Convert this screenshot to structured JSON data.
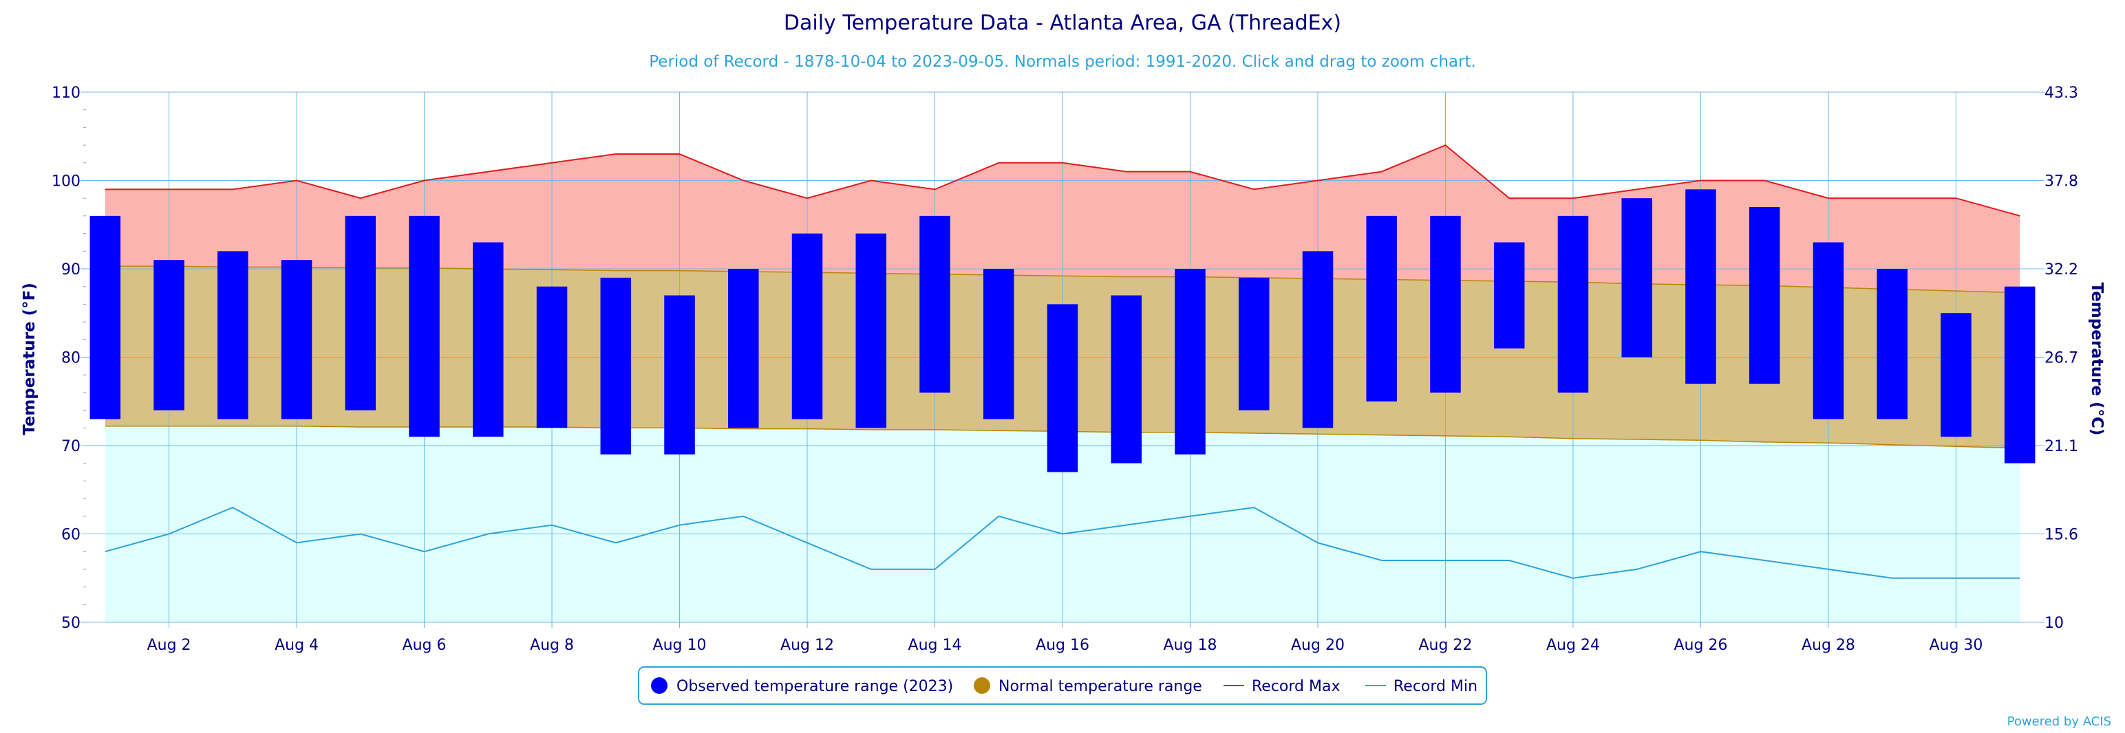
{
  "chart_data": {
    "type": "bar",
    "title": "Daily Temperature Data - Atlanta Area, GA (ThreadEx)",
    "subtitle": "Period of Record - 1878-10-04 to 2023-09-05. Normals period: 1991-2020. Click and drag to zoom chart.",
    "ylabel": "Temperature (°F)",
    "ylabel_right": "Temperature (°C)",
    "ylim": [
      50,
      110
    ],
    "yticks": [
      "50",
      "60",
      "70",
      "80",
      "90",
      "100",
      "110"
    ],
    "yticks_right": [
      "10",
      "15.6",
      "21.1",
      "26.7",
      "32.2",
      "37.8",
      "43.3"
    ],
    "x": [
      "Aug 1",
      "Aug 2",
      "Aug 3",
      "Aug 4",
      "Aug 5",
      "Aug 6",
      "Aug 7",
      "Aug 8",
      "Aug 9",
      "Aug 10",
      "Aug 11",
      "Aug 12",
      "Aug 13",
      "Aug 14",
      "Aug 15",
      "Aug 16",
      "Aug 17",
      "Aug 18",
      "Aug 19",
      "Aug 20",
      "Aug 21",
      "Aug 22",
      "Aug 23",
      "Aug 24",
      "Aug 25",
      "Aug 26",
      "Aug 27",
      "Aug 28",
      "Aug 29",
      "Aug 30",
      "Aug 31"
    ],
    "xtick_labels": [
      "Aug 2",
      "Aug 4",
      "Aug 6",
      "Aug 8",
      "Aug 10",
      "Aug 12",
      "Aug 14",
      "Aug 16",
      "Aug 18",
      "Aug 20",
      "Aug 22",
      "Aug 24",
      "Aug 26",
      "Aug 28",
      "Aug 30"
    ],
    "series": [
      {
        "name": "Observed temperature range (2023)",
        "color": "#0000ff",
        "high": [
          96,
          91,
          92,
          91,
          96,
          96,
          93,
          88,
          89,
          87,
          90,
          94,
          94,
          96,
          90,
          86,
          87,
          90,
          89,
          92,
          96,
          96,
          93,
          96,
          98,
          99,
          97,
          93,
          90,
          85,
          88
        ],
        "low": [
          73,
          74,
          73,
          73,
          74,
          71,
          71,
          72,
          69,
          69,
          72,
          73,
          72,
          76,
          73,
          67,
          68,
          69,
          74,
          72,
          75,
          76,
          81,
          76,
          80,
          77,
          77,
          73,
          73,
          71,
          68
        ]
      },
      {
        "name": "Normal temperature range",
        "color": "#b8860b",
        "fill": "#d8c184",
        "high": [
          90.3,
          90.3,
          90.2,
          90.2,
          90.1,
          90.1,
          90.0,
          89.9,
          89.8,
          89.8,
          89.7,
          89.6,
          89.5,
          89.4,
          89.3,
          89.2,
          89.1,
          89.1,
          89.0,
          88.9,
          88.8,
          88.7,
          88.6,
          88.5,
          88.3,
          88.2,
          88.1,
          87.9,
          87.7,
          87.5,
          87.3
        ],
        "low": [
          72.2,
          72.2,
          72.2,
          72.2,
          72.1,
          72.1,
          72.1,
          72.1,
          72.0,
          72.0,
          71.9,
          71.9,
          71.8,
          71.8,
          71.7,
          71.6,
          71.5,
          71.5,
          71.4,
          71.3,
          71.2,
          71.1,
          71.0,
          70.8,
          70.7,
          70.6,
          70.4,
          70.3,
          70.1,
          69.9,
          69.7
        ]
      },
      {
        "name": "Record Max",
        "color": "#e31a1c",
        "fill": "#fbb4b0",
        "values": [
          99,
          99,
          99,
          100,
          98,
          100,
          101,
          102,
          103,
          103,
          100,
          98,
          100,
          99,
          102,
          102,
          101,
          101,
          99,
          100,
          101,
          104,
          98,
          98,
          99,
          100,
          100,
          98,
          98,
          98,
          96
        ]
      },
      {
        "name": "Record Min",
        "color": "#2ea3d9",
        "fill": "#e0ffff",
        "values": [
          58,
          60,
          63,
          59,
          60,
          58,
          60,
          61,
          59,
          61,
          62,
          59,
          56,
          56,
          62,
          60,
          61,
          62,
          63,
          59,
          57,
          57,
          57,
          55,
          56,
          58,
          57,
          56,
          55,
          55,
          55
        ]
      }
    ],
    "grid": true,
    "legend": "bottom-center",
    "credit": "Powered by ACIS"
  }
}
